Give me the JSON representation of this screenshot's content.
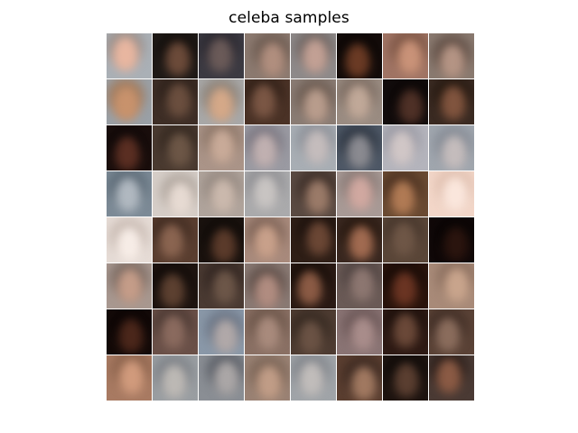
{
  "title": "celeba samples",
  "grid": {
    "rows": 8,
    "cols": 8
  },
  "samples": [
    {
      "bg": "#aab0b6",
      "skin": "#e8b6a0",
      "hair": "#9a8f8a"
    },
    {
      "bg": "#1f1a17",
      "skin": "#6b4a39",
      "hair": "#120e0c"
    },
    {
      "bg": "#3c3a42",
      "skin": "#6a5a58",
      "hair": "#2a2830"
    },
    {
      "bg": "#8c7a70",
      "skin": "#b08e7e",
      "hair": "#6b5a50"
    },
    {
      "bg": "#8e8a8a",
      "skin": "#c2a094",
      "hair": "#6f6562"
    },
    {
      "bg": "#140c0a",
      "skin": "#6a3a24",
      "hair": "#0a0605"
    },
    {
      "bg": "#a07464",
      "skin": "#c99278",
      "hair": "#7a5444"
    },
    {
      "bg": "#8a7a70",
      "skin": "#b49484",
      "hair": "#5f4d44"
    },
    {
      "bg": "#9aa0a6",
      "skin": "#c8926c",
      "hair": "#a07c60"
    },
    {
      "bg": "#3e2e26",
      "skin": "#6a4e3e",
      "hair": "#2c201a"
    },
    {
      "bg": "#a8a8a8",
      "skin": "#d4a888",
      "hair": "#8c8278"
    },
    {
      "bg": "#4a3226",
      "skin": "#7a5644",
      "hair": "#2e1e16"
    },
    {
      "bg": "#8a7c74",
      "skin": "#b89c8c",
      "hair": "#6a5a50"
    },
    {
      "bg": "#9a8c82",
      "skin": "#c0a898",
      "hair": "#7a6a60"
    },
    {
      "bg": "#120c0c",
      "skin": "#4e3026",
      "hair": "#0a0606"
    },
    {
      "bg": "#3a2a22",
      "skin": "#80543e",
      "hair": "#241810"
    },
    {
      "bg": "#1a0e0c",
      "skin": "#5a2e22",
      "hair": "#0e0808"
    },
    {
      "bg": "#4a3a30",
      "skin": "#6c5646",
      "hair": "#342820"
    },
    {
      "bg": "#aa9488",
      "skin": "#c8aa98",
      "hair": "#8c7668"
    },
    {
      "bg": "#9a9aa2",
      "skin": "#c0b0b0",
      "hair": "#7a7680"
    },
    {
      "bg": "#a8aeb4",
      "skin": "#c4bcbc",
      "hair": "#8c9098"
    },
    {
      "bg": "#4e5866",
      "skin": "#8a8a90",
      "hair": "#2c3440"
    },
    {
      "bg": "#b4b4bc",
      "skin": "#d0c6c6",
      "hair": "#9a9aa4"
    },
    {
      "bg": "#a0a6ae",
      "skin": "#c4bcbc",
      "hair": "#848a94"
    },
    {
      "bg": "#7c8a96",
      "skin": "#b0b8c0",
      "hair": "#5a6874"
    },
    {
      "bg": "#d6cec8",
      "skin": "#e6dad2",
      "hair": "#b0a69e"
    },
    {
      "bg": "#b0a49c",
      "skin": "#cab8ac",
      "hair": "#948880"
    },
    {
      "bg": "#aaaaac",
      "skin": "#c8c4c2",
      "hair": "#8e8e92"
    },
    {
      "bg": "#5a4a42",
      "skin": "#9a7a68",
      "hair": "#3a2c26"
    },
    {
      "bg": "#a89a96",
      "skin": "#d0a8a0",
      "hair": "#887a76"
    },
    {
      "bg": "#6a4a32",
      "skin": "#b07a54",
      "hair": "#4a3020"
    },
    {
      "bg": "#f2d6c8",
      "skin": "#fae6dc",
      "hair": "#e0c0b0"
    },
    {
      "bg": "#e6dcd6",
      "skin": "#f6ece6",
      "hair": "#c8bab2"
    },
    {
      "bg": "#5a3e30",
      "skin": "#8a6450",
      "hair": "#3e2a20"
    },
    {
      "bg": "#1a120e",
      "skin": "#5a3a2a",
      "hair": "#0e0a08"
    },
    {
      "bg": "#a88a7c",
      "skin": "#c8a08a",
      "hair": "#7c6256"
    },
    {
      "bg": "#2e1e16",
      "skin": "#6a4634",
      "hair": "#1a100c"
    },
    {
      "bg": "#3a2820",
      "skin": "#a06a50",
      "hair": "#24160e"
    },
    {
      "bg": "#5a4638",
      "skin": "#6e5646",
      "hair": "#46362c"
    },
    {
      "bg": "#100808",
      "skin": "#2a140e",
      "hair": "#080404"
    },
    {
      "bg": "#a89890",
      "skin": "#c49c88",
      "hair": "#7a6a62"
    },
    {
      "bg": "#1e1410",
      "skin": "#5c4030",
      "hair": "#100a08"
    },
    {
      "bg": "#4a3a32",
      "skin": "#6c5648",
      "hair": "#302420"
    },
    {
      "bg": "#8a7a74",
      "skin": "#b08c80",
      "hair": "#5e4e48"
    },
    {
      "bg": "#2a1a14",
      "skin": "#8a5a44",
      "hair": "#120a06"
    },
    {
      "bg": "#6a5a56",
      "skin": "#8c7670",
      "hair": "#4e4240"
    },
    {
      "bg": "#2a140c",
      "skin": "#6a3422",
      "hair": "#160a06"
    },
    {
      "bg": "#a88a78",
      "skin": "#c8a48c",
      "hair": "#8a6e5e"
    },
    {
      "bg": "#140a08",
      "skin": "#4a261a",
      "hair": "#0a0404"
    },
    {
      "bg": "#6a5048",
      "skin": "#8a6a5e",
      "hair": "#4a3832"
    },
    {
      "bg": "#8a98a8",
      "skin": "#b0a8a8",
      "hair": "#6a7484"
    },
    {
      "bg": "#8a7064",
      "skin": "#a88a7c",
      "hair": "#6a5448"
    },
    {
      "bg": "#4e3c32",
      "skin": "#6a5244",
      "hair": "#342820"
    },
    {
      "bg": "#8a7474",
      "skin": "#a88c8a",
      "hair": "#6a5656"
    },
    {
      "bg": "#2e1a14",
      "skin": "#6a4838",
      "hair": "#1a0e0a"
    },
    {
      "bg": "#5a4236",
      "skin": "#8a6c5c",
      "hair": "#3e2c24"
    },
    {
      "bg": "#a87a62",
      "skin": "#d09a7c",
      "hair": "#8a624c"
    },
    {
      "bg": "#9a9ea2",
      "skin": "#bcb8b4",
      "hair": "#7c8086"
    },
    {
      "bg": "#8a8e94",
      "skin": "#aaa6a6",
      "hair": "#5a5e66"
    },
    {
      "bg": "#9a8274",
      "skin": "#c09c86",
      "hair": "#7a6456"
    },
    {
      "bg": "#a0a4a8",
      "skin": "#c0bcba",
      "hair": "#80848a"
    },
    {
      "bg": "#5a3e30",
      "skin": "#a07860",
      "hair": "#3a2820"
    },
    {
      "bg": "#1e1410",
      "skin": "#5a3e30",
      "hair": "#0e0a08"
    },
    {
      "bg": "#4a3a34",
      "skin": "#8a5a44",
      "hair": "#2a1e1a"
    }
  ]
}
